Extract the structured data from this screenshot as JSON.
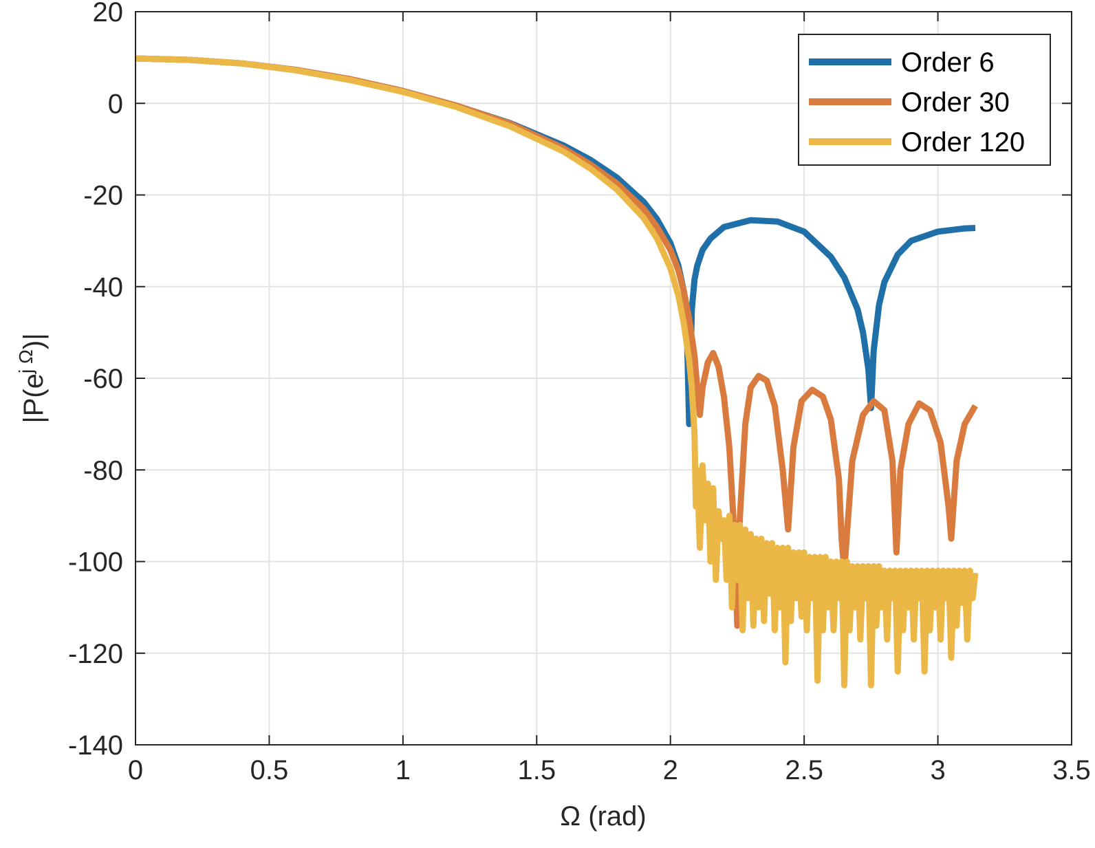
{
  "chart_data": {
    "type": "line",
    "title": "",
    "xlabel": "Ω (rad)",
    "ylabel_parts": {
      "pre": "|P(e",
      "sup": "j Ω",
      "post": ")|"
    },
    "xlim": [
      0,
      3.5
    ],
    "ylim": [
      -140,
      20
    ],
    "xticks": [
      0,
      0.5,
      1,
      1.5,
      2,
      2.5,
      3,
      3.5
    ],
    "yticks": [
      20,
      0,
      -20,
      -40,
      -60,
      -80,
      -100,
      -120,
      -140
    ],
    "xtick_labels": [
      "0",
      "0.5",
      "1",
      "1.5",
      "2",
      "2.5",
      "3",
      "3.5"
    ],
    "ytick_labels": [
      "20",
      "0",
      "-20",
      "-40",
      "-60",
      "-80",
      "-100",
      "-120",
      "-140"
    ],
    "grid": true,
    "legend_position": "top-right",
    "series": [
      {
        "name": "Order 6",
        "color": "#1f6fa8",
        "x": [
          0,
          0.2,
          0.4,
          0.6,
          0.8,
          1.0,
          1.2,
          1.4,
          1.6,
          1.7,
          1.8,
          1.9,
          1.95,
          2.0,
          2.03,
          2.05,
          2.06,
          2.07,
          2.08,
          2.09,
          2.1,
          2.12,
          2.15,
          2.2,
          2.3,
          2.4,
          2.5,
          2.6,
          2.65,
          2.7,
          2.72,
          2.74,
          2.75,
          2.76,
          2.78,
          2.8,
          2.85,
          2.9,
          3.0,
          3.1,
          3.14
        ],
        "y": [
          9.8,
          9.5,
          8.7,
          7.3,
          5.3,
          2.7,
          -0.5,
          -4.3,
          -9.2,
          -12.3,
          -16.2,
          -21.5,
          -25.3,
          -30.5,
          -35.5,
          -41.0,
          -45.0,
          -70.0,
          -45.0,
          -38.5,
          -35.5,
          -32.0,
          -29.5,
          -27.0,
          -25.5,
          -25.8,
          -28.0,
          -33.5,
          -38.0,
          -45.0,
          -50.0,
          -58.0,
          -66.5,
          -54.0,
          -44.0,
          -39.0,
          -33.0,
          -30.0,
          -28.0,
          -27.3,
          -27.2
        ]
      },
      {
        "name": "Order 30",
        "color": "#d97b3f",
        "x": [
          0,
          0.2,
          0.4,
          0.6,
          0.8,
          1.0,
          1.2,
          1.4,
          1.6,
          1.7,
          1.8,
          1.9,
          1.95,
          2.0,
          2.03,
          2.05,
          2.07,
          2.09,
          2.1,
          2.11,
          2.12,
          2.14,
          2.16,
          2.18,
          2.2,
          2.22,
          2.24,
          2.25,
          2.26,
          2.28,
          2.3,
          2.33,
          2.36,
          2.39,
          2.42,
          2.44,
          2.46,
          2.49,
          2.53,
          2.57,
          2.6,
          2.63,
          2.64,
          2.65,
          2.68,
          2.72,
          2.76,
          2.8,
          2.83,
          2.845,
          2.86,
          2.89,
          2.93,
          2.97,
          3.01,
          3.04,
          3.05,
          3.07,
          3.1,
          3.14
        ],
        "y": [
          9.8,
          9.5,
          8.7,
          7.3,
          5.3,
          2.7,
          -0.5,
          -4.4,
          -9.8,
          -13.3,
          -17.5,
          -23.0,
          -27.0,
          -32.0,
          -36.5,
          -41.0,
          -47.0,
          -55.0,
          -62.0,
          -68.0,
          -62.0,
          -56.5,
          -54.5,
          -57.5,
          -64.0,
          -75.0,
          -95.0,
          -114.0,
          -90.0,
          -70.0,
          -62.0,
          -59.5,
          -60.5,
          -66.0,
          -80.0,
          -93.0,
          -75.0,
          -65.0,
          -62.5,
          -64.0,
          -69.0,
          -82.0,
          -95.0,
          -102.0,
          -78.0,
          -68.0,
          -65.0,
          -67.0,
          -78.0,
          -98.0,
          -80.0,
          -70.0,
          -65.5,
          -67.0,
          -74.0,
          -88.0,
          -95.0,
          -78.0,
          -70.0,
          -66.0
        ]
      },
      {
        "name": "Order 120",
        "color": "#ebb848",
        "x": [
          0,
          0.2,
          0.4,
          0.6,
          0.8,
          1.0,
          1.2,
          1.4,
          1.6,
          1.7,
          1.8,
          1.9,
          1.95,
          2.0,
          2.03,
          2.05,
          2.07,
          2.08,
          2.09,
          2.095,
          2.1,
          2.11,
          2.12,
          2.13,
          2.14,
          2.15,
          2.16,
          2.17,
          2.18,
          2.19,
          2.2,
          2.21,
          2.22,
          2.23,
          2.24,
          2.25,
          2.26,
          2.27,
          2.28,
          2.29,
          2.3,
          2.31,
          2.32,
          2.33,
          2.34,
          2.35,
          2.36,
          2.37,
          2.38,
          2.39,
          2.4,
          2.41,
          2.42,
          2.43,
          2.44,
          2.45,
          2.46,
          2.47,
          2.48,
          2.49,
          2.5,
          2.51,
          2.52,
          2.53,
          2.54,
          2.55,
          2.56,
          2.57,
          2.58,
          2.59,
          2.6,
          2.61,
          2.62,
          2.63,
          2.64,
          2.65,
          2.66,
          2.67,
          2.68,
          2.69,
          2.7,
          2.71,
          2.72,
          2.73,
          2.74,
          2.75,
          2.76,
          2.77,
          2.78,
          2.79,
          2.8,
          2.81,
          2.82,
          2.83,
          2.84,
          2.85,
          2.86,
          2.87,
          2.88,
          2.89,
          2.9,
          2.91,
          2.92,
          2.93,
          2.94,
          2.95,
          2.96,
          2.97,
          2.98,
          2.99,
          3.0,
          3.01,
          3.02,
          3.03,
          3.04,
          3.05,
          3.06,
          3.07,
          3.08,
          3.09,
          3.1,
          3.11,
          3.12,
          3.13,
          3.14
        ],
        "y": [
          9.8,
          9.5,
          8.7,
          7.2,
          5.1,
          2.5,
          -0.8,
          -5.0,
          -10.5,
          -14.2,
          -18.8,
          -25.0,
          -29.5,
          -36.0,
          -42.0,
          -48.0,
          -56.0,
          -62.0,
          -72.0,
          -88.0,
          -80.0,
          -97.0,
          -79.0,
          -91.0,
          -83.0,
          -100.0,
          -84.0,
          -104.0,
          -89.0,
          -95.0,
          -91.0,
          -104.0,
          -90.0,
          -110.0,
          -92.0,
          -104.0,
          -92.0,
          -115.0,
          -93.0,
          -108.0,
          -94.0,
          -114.0,
          -95.0,
          -110.0,
          -95.0,
          -113.0,
          -96.0,
          -107.0,
          -96.0,
          -115.0,
          -97.0,
          -110.0,
          -97.0,
          -122.0,
          -97.0,
          -113.0,
          -98.0,
          -108.0,
          -98.0,
          -112.0,
          -98.0,
          -115.0,
          -99.0,
          -108.0,
          -99.0,
          -126.0,
          -99.0,
          -115.0,
          -99.0,
          -110.0,
          -100.0,
          -115.0,
          -100.0,
          -108.0,
          -100.0,
          -127.0,
          -100.0,
          -115.0,
          -101.0,
          -110.0,
          -101.0,
          -117.0,
          -101.0,
          -108.0,
          -101.0,
          -127.0,
          -101.0,
          -114.0,
          -101.0,
          -110.0,
          -102.0,
          -117.0,
          -102.0,
          -108.0,
          -102.0,
          -124.0,
          -102.0,
          -115.0,
          -102.0,
          -110.0,
          -102.0,
          -117.0,
          -102.0,
          -108.0,
          -102.0,
          -124.0,
          -102.0,
          -115.0,
          -102.0,
          -110.0,
          -102.0,
          -117.0,
          -102.0,
          -108.0,
          -102.0,
          -121.0,
          -102.0,
          -114.0,
          -102.0,
          -109.0,
          -102.0,
          -117.0,
          -102.0,
          -108.0,
          -102.5
        ]
      }
    ]
  }
}
